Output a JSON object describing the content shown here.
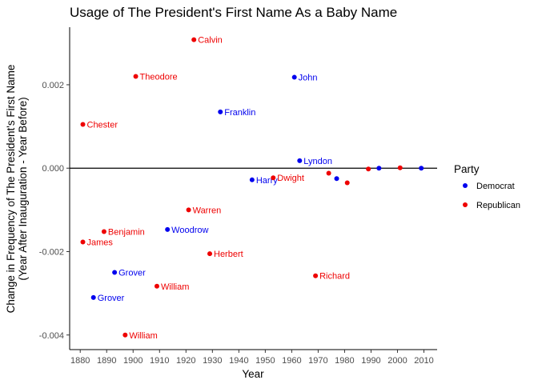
{
  "chart_data": {
    "type": "scatter",
    "title": "Usage of The President's First Name As a Baby Name",
    "xlabel": "Year",
    "ylabel_lines": [
      "Change in Frequency of The President's First Name",
      "(Year After Inauguration - Year Before)"
    ],
    "xlim": [
      1876,
      2015
    ],
    "ylim": [
      -0.00435,
      0.00338
    ],
    "x_ticks": [
      1880,
      1890,
      1900,
      1910,
      1920,
      1930,
      1940,
      1950,
      1960,
      1970,
      1980,
      1990,
      2000,
      2010
    ],
    "y_ticks": [
      {
        "value": -0.004,
        "label": "-0.004"
      },
      {
        "value": -0.002,
        "label": "-0.002"
      },
      {
        "value": 0.0,
        "label": "0.000"
      },
      {
        "value": 0.002,
        "label": "0.002"
      }
    ],
    "reference_line_y": 0,
    "grid": false,
    "legend": {
      "title": "Party",
      "placement": "right",
      "entries": [
        {
          "label": "Democrat",
          "color": "#0000ee"
        },
        {
          "label": "Republican",
          "color": "#ee0000"
        }
      ]
    },
    "colors": {
      "Democrat": "#0000ee",
      "Republican": "#ee0000"
    },
    "points": [
      {
        "x": 1881,
        "y": 0.00105,
        "label": "Chester",
        "party": "Republican"
      },
      {
        "x": 1881,
        "y": -0.00177,
        "label": "James",
        "party": "Republican"
      },
      {
        "x": 1885,
        "y": -0.0031,
        "label": "Grover",
        "party": "Democrat"
      },
      {
        "x": 1889,
        "y": -0.00152,
        "label": "Benjamin",
        "party": "Republican"
      },
      {
        "x": 1893,
        "y": -0.0025,
        "label": "Grover",
        "party": "Democrat"
      },
      {
        "x": 1897,
        "y": -0.004,
        "label": "William",
        "party": "Republican"
      },
      {
        "x": 1901,
        "y": 0.0022,
        "label": "Theodore",
        "party": "Republican"
      },
      {
        "x": 1909,
        "y": -0.00283,
        "label": "William",
        "party": "Republican"
      },
      {
        "x": 1913,
        "y": -0.00147,
        "label": "Woodrow",
        "party": "Democrat"
      },
      {
        "x": 1921,
        "y": -0.001,
        "label": "Warren",
        "party": "Republican"
      },
      {
        "x": 1923,
        "y": 0.00308,
        "label": "Calvin",
        "party": "Republican"
      },
      {
        "x": 1929,
        "y": -0.00205,
        "label": "Herbert",
        "party": "Republican"
      },
      {
        "x": 1933,
        "y": 0.00135,
        "label": "Franklin",
        "party": "Democrat"
      },
      {
        "x": 1945,
        "y": -0.00028,
        "label": "Harry",
        "party": "Democrat"
      },
      {
        "x": 1953,
        "y": -0.00023,
        "label": "Dwight",
        "party": "Republican"
      },
      {
        "x": 1961,
        "y": 0.00218,
        "label": "John",
        "party": "Democrat"
      },
      {
        "x": 1963,
        "y": 0.00018,
        "label": "Lyndon",
        "party": "Democrat"
      },
      {
        "x": 1969,
        "y": -0.00258,
        "label": "Richard",
        "party": "Republican"
      },
      {
        "x": 1974,
        "y": -0.00012,
        "label": "",
        "party": "Republican"
      },
      {
        "x": 1977,
        "y": -0.00025,
        "label": "",
        "party": "Democrat"
      },
      {
        "x": 1981,
        "y": -0.00035,
        "label": "",
        "party": "Republican"
      },
      {
        "x": 1989,
        "y": -2e-05,
        "label": "",
        "party": "Republican"
      },
      {
        "x": 1993,
        "y": 0.0,
        "label": "",
        "party": "Democrat"
      },
      {
        "x": 2001,
        "y": 1e-05,
        "label": "",
        "party": "Republican"
      },
      {
        "x": 2009,
        "y": 0.0,
        "label": "",
        "party": "Democrat"
      }
    ]
  }
}
